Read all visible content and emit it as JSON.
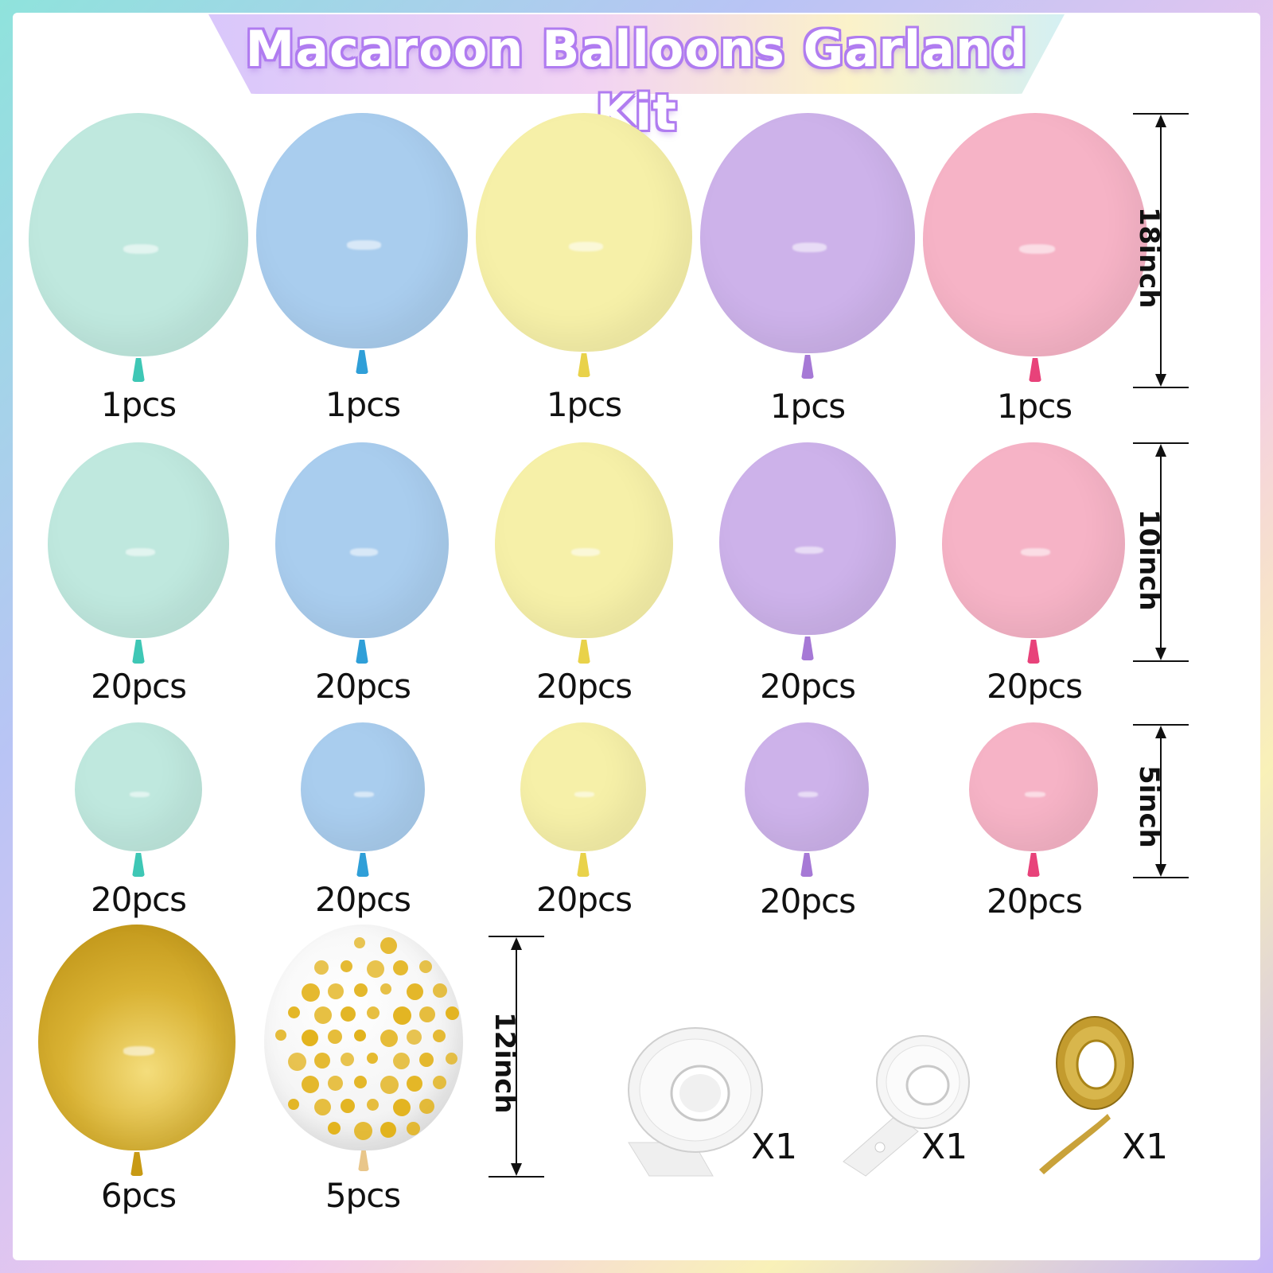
{
  "title": "Macaroon Balloons Garland Kit",
  "colors": {
    "mint": "#bfe8de",
    "blue": "#a9cdee",
    "yellow": "#f6f0a8",
    "purple": "#cdb2ea",
    "pink": "#f6b3c6",
    "gold": "#d3a826",
    "mint_knot": "#3ec7b5",
    "blue_knot": "#2f9fd8",
    "yellow_knot": "#e9d24a",
    "purple_knot": "#a679d6",
    "pink_knot": "#e8427a",
    "gold_knot": "#c89a14"
  },
  "rows": [
    {
      "size_label": "18inch",
      "quantities": [
        "1pcs",
        "1pcs",
        "1pcs",
        "1pcs",
        "1pcs"
      ]
    },
    {
      "size_label": "10inch",
      "quantities": [
        "20pcs",
        "20pcs",
        "20pcs",
        "20pcs",
        "20pcs"
      ]
    },
    {
      "size_label": "5inch",
      "quantities": [
        "20pcs",
        "20pcs",
        "20pcs",
        "20pcs",
        "20pcs"
      ]
    }
  ],
  "bottom": {
    "size_label": "12inch",
    "gold_qty": "6pcs",
    "confetti_qty": "5pcs",
    "accessories": [
      {
        "name": "glue-dots",
        "label": "X1"
      },
      {
        "name": "balloon-strip",
        "label": "X1"
      },
      {
        "name": "gold-ribbon",
        "label": "X1"
      }
    ]
  }
}
